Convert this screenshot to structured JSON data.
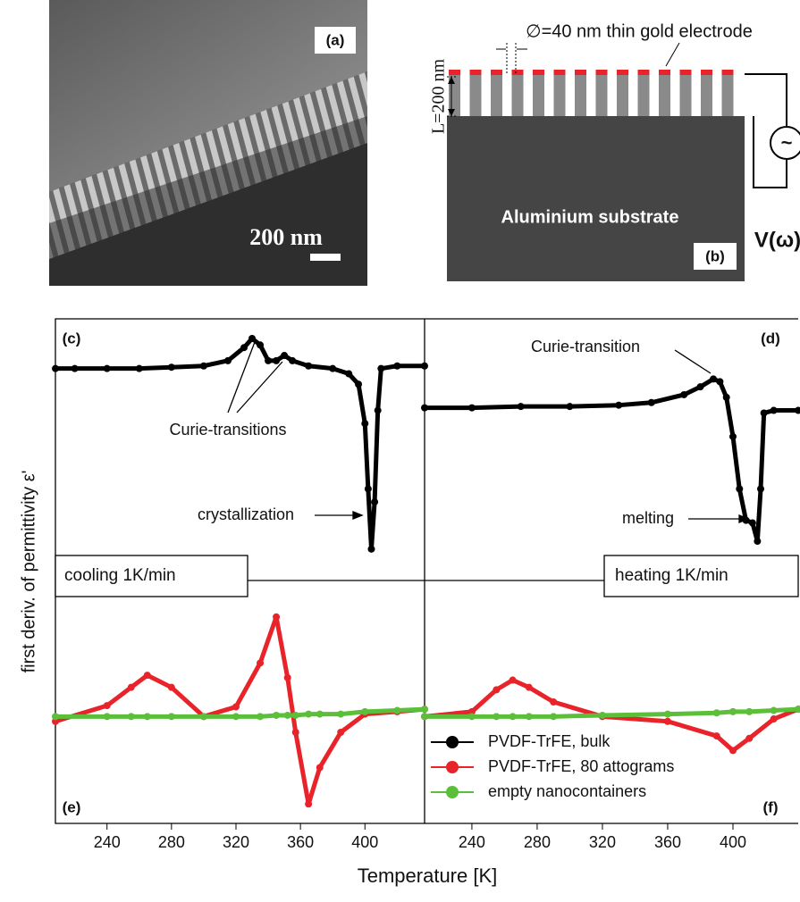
{
  "panel_a": {
    "label": "(a)",
    "scale_bar": "200 nm"
  },
  "panel_b": {
    "label": "(b)",
    "diameter": "∅=40 nm thin gold electrode",
    "length": "L=200 nm",
    "substrate": "Aluminium substrate",
    "voltage": "V(ω)",
    "source": "~"
  },
  "y_label": "first deriv. of permittivity ε'",
  "x_label": "Temperature [K]",
  "legend": [
    {
      "name": "PVDF-TrFE, bulk",
      "color": "#000000"
    },
    {
      "name": "PVDF-TrFE, 80 attograms",
      "color": "#e8232a"
    },
    {
      "name": "empty nanocontainers",
      "color": "#5bbf3a"
    }
  ],
  "chart_data": [
    {
      "type": "line",
      "label": "(c)",
      "condition": "cooling 1K/min",
      "annotations": [
        "Curie-transitions",
        "crystallization"
      ],
      "xlim": [
        208,
        437
      ],
      "ylim": [
        0,
        10
      ],
      "x": [
        208,
        220,
        240,
        260,
        280,
        300,
        315,
        325,
        330,
        335,
        340,
        345,
        350,
        355,
        365,
        380,
        390,
        396,
        400,
        402,
        404,
        406,
        408,
        410,
        420,
        437
      ],
      "series": [
        {
          "color": "#000000",
          "values": [
            8.1,
            8.1,
            8.1,
            8.1,
            8.15,
            8.2,
            8.4,
            8.9,
            9.25,
            9.0,
            8.4,
            8.4,
            8.6,
            8.4,
            8.2,
            8.1,
            7.9,
            7.5,
            6.0,
            3.5,
            1.2,
            3.0,
            6.5,
            8.1,
            8.2,
            8.2
          ]
        }
      ]
    },
    {
      "type": "line",
      "label": "(d)",
      "condition": "heating 1K/min",
      "annotations": [
        "Curie-transition",
        "melting"
      ],
      "xlim": [
        211,
        440
      ],
      "ylim": [
        0,
        10
      ],
      "x": [
        211,
        240,
        270,
        300,
        330,
        350,
        370,
        380,
        388,
        392,
        396,
        400,
        404,
        408,
        412,
        415,
        417,
        419,
        425,
        440
      ],
      "series": [
        {
          "color": "#000000",
          "values": [
            6.6,
            6.6,
            6.65,
            6.65,
            6.7,
            6.8,
            7.1,
            7.4,
            7.7,
            7.6,
            7.0,
            5.5,
            3.5,
            2.3,
            2.2,
            1.5,
            3.5,
            6.4,
            6.5,
            6.5
          ]
        }
      ]
    },
    {
      "type": "line",
      "label": "(e)",
      "xlim": [
        208,
        437
      ],
      "ylim": [
        0,
        10
      ],
      "xticks": [
        240,
        280,
        320,
        360,
        400
      ],
      "x": [
        208,
        240,
        255,
        265,
        280,
        300,
        320,
        335,
        345,
        352,
        357,
        365,
        372,
        385,
        400,
        420,
        437
      ],
      "series": [
        {
          "color": "#e8232a",
          "values": [
            4.2,
            4.85,
            5.6,
            6.1,
            5.6,
            4.4,
            4.8,
            6.6,
            8.5,
            6.0,
            3.75,
            0.8,
            2.3,
            3.75,
            4.5,
            4.6,
            4.7
          ]
        },
        {
          "color": "#5bbf3a",
          "values": [
            4.4,
            4.4,
            4.4,
            4.4,
            4.4,
            4.4,
            4.4,
            4.4,
            4.45,
            4.45,
            4.45,
            4.5,
            4.5,
            4.5,
            4.6,
            4.65,
            4.7
          ]
        }
      ]
    },
    {
      "type": "line",
      "label": "(f)",
      "xlim": [
        211,
        440
      ],
      "ylim": [
        0,
        10
      ],
      "xticks": [
        240,
        280,
        320,
        360,
        400
      ],
      "x": [
        211,
        240,
        255,
        265,
        275,
        290,
        320,
        360,
        390,
        400,
        410,
        425,
        440
      ],
      "series": [
        {
          "color": "#e8232a",
          "values": [
            4.4,
            4.6,
            5.5,
            5.9,
            5.6,
            5.0,
            4.4,
            4.2,
            3.6,
            3.0,
            3.5,
            4.3,
            4.7
          ]
        },
        {
          "color": "#5bbf3a",
          "values": [
            4.4,
            4.4,
            4.4,
            4.4,
            4.4,
            4.4,
            4.45,
            4.5,
            4.55,
            4.6,
            4.6,
            4.65,
            4.7
          ]
        }
      ]
    }
  ]
}
